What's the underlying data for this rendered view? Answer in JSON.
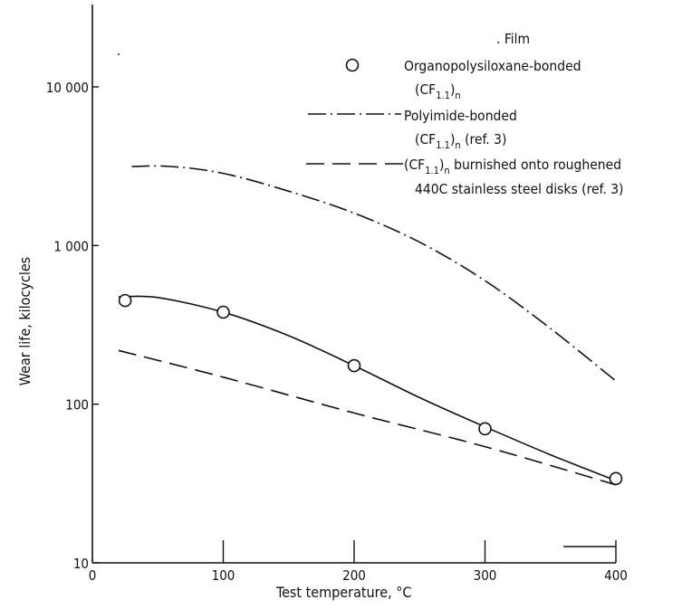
{
  "chart_data": {
    "type": "line",
    "title": "",
    "xlabel": "Test temperature, °C",
    "ylabel": "Wear life, kilocycles",
    "x_scale": "linear",
    "y_scale": "log",
    "xlim": [
      0,
      400
    ],
    "ylim": [
      10,
      10000
    ],
    "x_ticks": [
      0,
      100,
      200,
      300,
      400
    ],
    "x_tick_labels": [
      "0",
      "100",
      "200",
      "300",
      "400"
    ],
    "y_ticks": [
      10,
      100,
      1000,
      10000
    ],
    "y_tick_labels": [
      "10",
      "100",
      "1 000",
      "10 000"
    ],
    "grid": false,
    "legend": {
      "placement": "top-right",
      "header": "Film",
      "entries": [
        {
          "line1": "Organopolysiloxane-bonded",
          "line2": "(CF",
          "line2_sub": "1.1",
          "line2_after": ")",
          "line2_sub2": "n",
          "line2_tail": ""
        },
        {
          "line1": "Polyimide-bonded",
          "line2": "(CF",
          "line2_sub": "1.1",
          "line2_after": ")",
          "line2_sub2": "n",
          "line2_tail": " (ref. 3)"
        },
        {
          "line1_pre": "(CF",
          "line1_sub": "1.1",
          "line1_after": ")",
          "line1_sub2": "n",
          "line1": " burnished onto roughened",
          "line2": "440C stainless steel disks (ref. 3)"
        }
      ]
    },
    "series": [
      {
        "style": "solid-with-circles",
        "x": [
          25,
          100,
          200,
          300,
          400
        ],
        "y": [
          450,
          380,
          175,
          70,
          34
        ],
        "curve": {
          "x": [
            20,
            50,
            100,
            150,
            200,
            250,
            300,
            350,
            400
          ],
          "y": [
            475,
            470,
            380,
            270,
            175,
            110,
            72,
            48,
            33
          ]
        }
      },
      {
        "style": "dash-dot",
        "curve": {
          "x": [
            30,
            60,
            100,
            150,
            200,
            250,
            300,
            350,
            400
          ],
          "y": [
            3150,
            3150,
            2850,
            2200,
            1600,
            1050,
            600,
            300,
            140
          ]
        }
      },
      {
        "style": "long-dash",
        "curve": {
          "x": [
            20,
            100,
            200,
            300,
            400
          ],
          "y": [
            218,
            148,
            88,
            54,
            31
          ]
        }
      }
    ]
  }
}
